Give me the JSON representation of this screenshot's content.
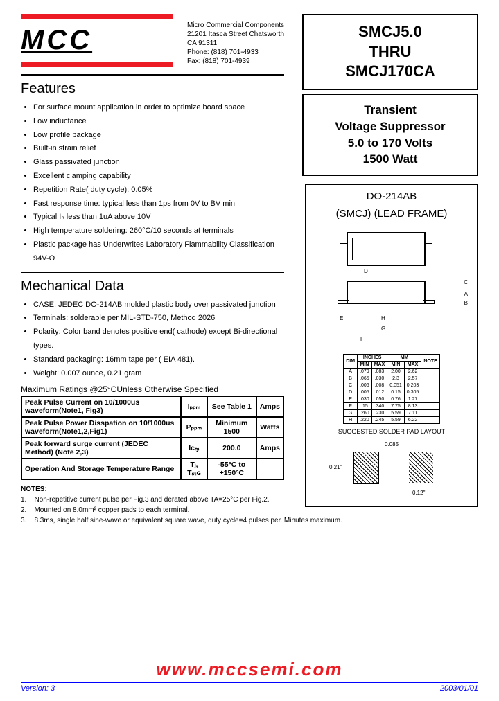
{
  "logo": "MCC",
  "company": {
    "name": "Micro Commercial Components",
    "addr1": "21201 Itasca Street Chatsworth",
    "addr2": "CA 91311",
    "phone": "Phone: (818) 701-4933",
    "fax": "Fax:      (818) 701-4939"
  },
  "title": {
    "line1": "SMCJ5.0",
    "line2": "THRU",
    "line3": "SMCJ170CA"
  },
  "subtitle": {
    "l1": "Transient",
    "l2": "Voltage Suppressor",
    "l3": "5.0 to 170 Volts",
    "l4": "1500 Watt"
  },
  "package": {
    "title1": "DO-214AB",
    "title2": "(SMCJ) (LEAD FRAME)",
    "solder_title": "SUGGESTED SOLDER PAD LAYOUT",
    "dim1": "0.085",
    "dim2": "0.21\"",
    "dim3": "0.12\""
  },
  "features": {
    "title": "Features",
    "items": [
      "For surface mount application in order to optimize board space",
      "Low inductance",
      "Low profile package",
      "Built-in strain relief",
      "Glass passivated junction",
      "Excellent clamping capability",
      "Repetition Rate( duty cycle): 0.05%",
      "Fast response time: typical less than 1ps from 0V to BV min",
      "Typical Iₙ less than 1uA above 10V",
      "High temperature soldering: 260°C/10 seconds at terminals",
      "Plastic package has Underwrites Laboratory Flammability Classification 94V-O"
    ]
  },
  "mechanical": {
    "title": "Mechanical Data",
    "items": [
      "CASE: JEDEC DO-214AB molded plastic body over passivated junction",
      "Terminals:   solderable per MIL-STD-750, Method 2026",
      "Polarity: Color band denotes positive end( cathode) except Bi-directional types.",
      "Standard packaging: 16mm tape per ( EIA 481).",
      "Weight: 0.007 ounce, 0.21 gram"
    ]
  },
  "ratings_title": "Maximum Ratings @25°CUnless Otherwise Specified",
  "ratings": [
    {
      "p": "Peak Pulse Current on 10/1000us waveform(Note1, Fig3)",
      "s": "Iₚₚₘ",
      "v": "See Table 1",
      "u": "Amps"
    },
    {
      "p": "Peak Pulse Power Disspation on 10/1000us waveform(Note1,2,Fig1)",
      "s": "Pₚₚₘ",
      "v": "Minimum 1500",
      "u": "Watts"
    },
    {
      "p": "Peak forward surge current (JEDEC Method) (Note 2,3)",
      "s": "Iᴄܱₘ",
      "v": "200.0",
      "u": "Amps"
    },
    {
      "p": "Operation And Storage Temperature Range",
      "s": "Tⱼ, Tₛₜɢ",
      "v": "-55°C to +150°C",
      "u": ""
    }
  ],
  "dims": {
    "header": [
      "DIM",
      "INCHES",
      "MM",
      "NOTE"
    ],
    "sub": [
      "",
      "MIN",
      "MAX",
      "MIN",
      "MAX",
      ""
    ],
    "rows": [
      [
        "A",
        ".079",
        ".083",
        "2.00",
        "2.62",
        ""
      ],
      [
        "B",
        ".065",
        ".030",
        "2.3",
        "2.57",
        ""
      ],
      [
        "C",
        ".006",
        ".008",
        "0.051",
        "0.203",
        ""
      ],
      [
        "D",
        ".005",
        ".012",
        "0.15",
        "0.305",
        ""
      ],
      [
        "E",
        ".030",
        ".050",
        "0.76",
        "1.27",
        ""
      ],
      [
        "F",
        ".15",
        ".340",
        "7.75",
        "8.13",
        ""
      ],
      [
        "G",
        ".260",
        ".230",
        "5.59",
        "7.11",
        ""
      ],
      [
        "H",
        ".220",
        ".245",
        "5.59",
        "6.22",
        ""
      ]
    ]
  },
  "notes": {
    "title": "NOTES:",
    "items": [
      "Non-repetitive current pulse per Fig.3 and derated above TA=25°C per Fig.2.",
      "Mounted on 8.0mm² copper pads to each terminal.",
      "8.3ms, single half sine-wave or equivalent square wave, duty cycle=4 pulses per. Minutes maximum."
    ]
  },
  "footer": {
    "url": "www.mccsemi.com",
    "version": "Version: 3",
    "date": "2003/01/01"
  }
}
